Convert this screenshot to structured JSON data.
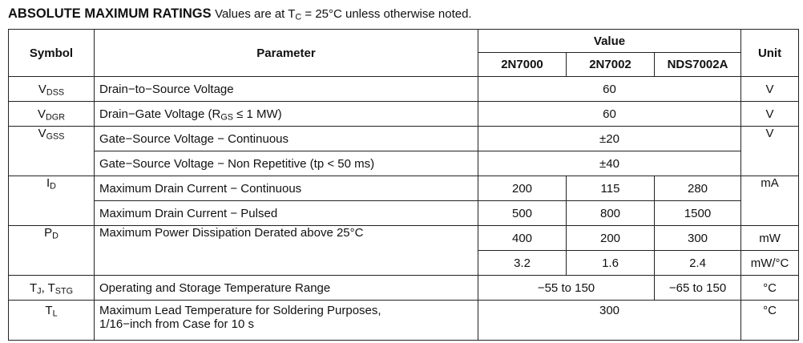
{
  "title": {
    "bold": "ABSOLUTE MAXIMUM RATINGS",
    "rest_prefix": "Values are at T",
    "rest_sub": "C",
    "rest_suffix": "= 25°C unless otherwise noted."
  },
  "header": {
    "symbol": "Symbol",
    "parameter": "Parameter",
    "value": "Value",
    "unit": "Unit",
    "parts": [
      "2N7000",
      "2N7002",
      "NDS7002A"
    ]
  },
  "rows": [
    {
      "sym_main": "V",
      "sym_sub": "DSS",
      "parameter": "Drain−to−Source Voltage",
      "value": "60",
      "unit": "V"
    },
    {
      "sym_main": "V",
      "sym_sub": "DGR",
      "param_prefix": "Drain−Gate Voltage (R",
      "param_sub": "GS",
      "param_suffix": " ≤ 1 MW)",
      "value": "60",
      "unit": "V"
    },
    {
      "sym_main": "V",
      "sym_sub": "GSS",
      "parameter": "Gate−Source Voltage − Continuous",
      "value": "±20",
      "unit": "V"
    },
    {
      "parameter": "Gate−Source Voltage − Non Repetitive (tp < 50 ms)",
      "value": "±40"
    },
    {
      "sym_main": "I",
      "sym_sub": "D",
      "parameter": "Maximum Drain Current − Continuous",
      "values": [
        "200",
        "115",
        "280"
      ],
      "unit": "mA"
    },
    {
      "parameter": "Maximum Drain Current − Pulsed",
      "values": [
        "500",
        "800",
        "1500"
      ]
    },
    {
      "sym_main": "P",
      "sym_sub": "D",
      "parameter": "Maximum Power Dissipation Derated above 25°C",
      "values": [
        "400",
        "200",
        "300"
      ],
      "unit": "mW"
    },
    {
      "values": [
        "3.2",
        "1.6",
        "2.4"
      ],
      "unit": "mW/°C"
    },
    {
      "sym_a": "T",
      "sym_a_sub": "J",
      "sym_sep": ", T",
      "sym_b_sub": "STG",
      "parameter": "Operating and Storage Temperature Range",
      "value_a": "−55 to 150",
      "value_b": "−65 to 150",
      "unit": "°C"
    },
    {
      "sym_main": "T",
      "sym_sub": "L",
      "parameter_line1": "Maximum Lead Temperature for Soldering Purposes,",
      "parameter_line2": "1/16−inch from Case for 10 s",
      "value": "300",
      "unit": "°C"
    }
  ]
}
